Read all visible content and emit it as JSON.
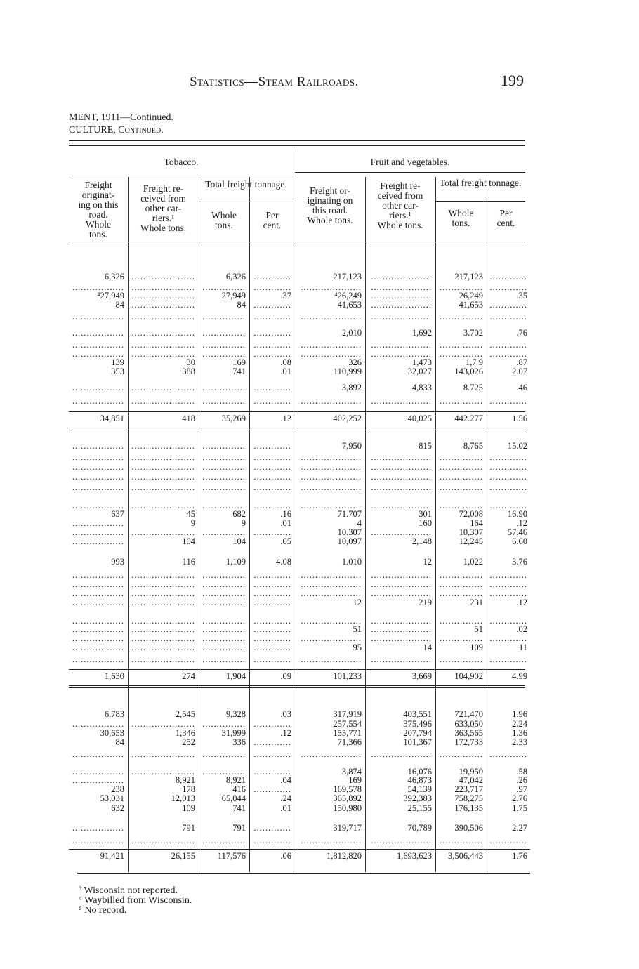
{
  "page": {
    "running_head": "Statistics—Steam Railroads.",
    "page_number": "199",
    "continued_1": "MENT, 1911—Continued.",
    "continued_2": "CULTURE, Continued."
  },
  "table": {
    "groups": [
      "Tobacco.",
      "Fruit and vegetables."
    ],
    "subgroup": "Total freight tonnage.",
    "columns": [
      "Freight originating on this road. Whole tons.",
      "Freight received from other carriers.¹ Whole tons.",
      "Whole tons.",
      "Per cent.",
      "Freight originating on this road. Whole tons.",
      "Freight received from other carriers.¹ Whole tons.",
      "Whole tons.",
      "Per cent."
    ],
    "column_lines": [
      [
        "Freight",
        "originat-",
        "ing on this",
        "road.",
        "Whole",
        "tons."
      ],
      [
        "Freight re-",
        "ceived from",
        "other car-",
        "riers.¹",
        "Whole tons."
      ],
      [
        "Whole",
        "tons."
      ],
      [
        "Per",
        "cent."
      ],
      [
        "Freight or-",
        "iginating on",
        "this road.",
        "Whole tons."
      ],
      [
        "Freight re-",
        "ceived from",
        "other car-",
        "riers.¹",
        "Whole tons."
      ],
      [
        "Whole",
        "tons."
      ],
      [
        "Per",
        "cent."
      ]
    ],
    "rows": [
      [
        "6,326",
        "........",
        "6,326",
        "........",
        "217,123",
        "........",
        "217,123",
        "........"
      ],
      [
        "........",
        "........",
        "........",
        "........",
        "........",
        "........",
        "........",
        "........"
      ],
      [
        "⁴27,949",
        "........",
        "27,949",
        ".37",
        "⁴26,249",
        "........",
        "26,249",
        ".35"
      ],
      [
        "84",
        "........",
        "84",
        "........",
        "41,653",
        "........",
        "41,653",
        "........"
      ],
      [
        "........",
        "........",
        "........",
        "........",
        "........",
        "........",
        "........",
        "........"
      ],
      [
        "........",
        "........",
        "........",
        "........",
        "2,010",
        "1,692",
        "3.702",
        ".76"
      ],
      [
        "........",
        "........",
        "........",
        "........",
        "........",
        "........",
        "........",
        "........"
      ],
      [
        "........",
        "........",
        "........",
        "........",
        "........",
        "........",
        "........",
        "........"
      ],
      [
        "139",
        "30",
        "169",
        ".08",
        "326",
        "1,473",
        "1,7 9",
        ".87"
      ],
      [
        "353",
        "388",
        "741",
        ".01",
        "110,999",
        "32,027",
        "143,026",
        "2.07"
      ],
      [
        "........",
        "........",
        "........",
        "........",
        "3,892",
        "4,833",
        "8.725",
        ".46"
      ],
      [
        "........",
        "........",
        "........",
        "........",
        "........",
        "........",
        "........",
        "........"
      ],
      [
        "34,851",
        "418",
        "35,269",
        ".12",
        "402,252",
        "40,025",
        "442.277",
        "1.56"
      ],
      [
        "........",
        "........",
        "........",
        "........",
        "7,950",
        "815",
        "8,765",
        "15.02"
      ],
      [
        "........",
        "........",
        "........",
        "........",
        "........",
        "........",
        "........",
        "........"
      ],
      [
        "........",
        "........",
        "........",
        "........",
        "........",
        "........",
        "........",
        "........"
      ],
      [
        "........",
        "........",
        "........",
        "........",
        "........",
        "........",
        "........",
        "........"
      ],
      [
        "........",
        "........",
        "........",
        "........",
        "........",
        "........",
        "........",
        "........"
      ],
      [
        "........",
        "........",
        "........",
        "........",
        "........",
        "........",
        "........",
        "........"
      ],
      [
        "637",
        "45",
        "682",
        ".16",
        "71.707",
        "301",
        "72,008",
        "16.90"
      ],
      [
        "........",
        "9",
        "9",
        ".01",
        "4",
        "160",
        "164",
        ".12"
      ],
      [
        "........",
        "........",
        "........",
        "........",
        "10.307",
        "........",
        "10,307",
        "57.46"
      ],
      [
        "........",
        "104",
        "104",
        ".05",
        "10,097",
        "2,148",
        "12,245",
        "6.60"
      ],
      [
        "993",
        "116",
        "1,109",
        "4.08",
        "1.010",
        "12",
        "1,022",
        "3.76"
      ],
      [
        "........",
        "........",
        "........",
        "........",
        "........",
        "........",
        "........",
        "........"
      ],
      [
        "........",
        "........",
        "........",
        "........",
        "........",
        "........",
        "........",
        "........"
      ],
      [
        "........",
        "........",
        "........",
        "........",
        "........",
        "........",
        "........",
        "........"
      ],
      [
        "........",
        "........",
        "........",
        "........",
        "12",
        "219",
        "231",
        ".12"
      ],
      [
        "........",
        "........",
        "........",
        "........",
        "........",
        "........",
        "........",
        "........"
      ],
      [
        "........",
        "........",
        "........",
        "........",
        "51",
        "........",
        "51",
        ".02"
      ],
      [
        "........",
        "........",
        "........",
        "........",
        "........",
        "........",
        "........",
        "........"
      ],
      [
        "........",
        "........",
        "........",
        "........",
        "95",
        "14",
        "109",
        ".11"
      ],
      [
        "........",
        "........",
        "........",
        "........",
        "........",
        "........",
        "........",
        "........"
      ],
      [
        "1,630",
        "274",
        "1,904",
        ".09",
        "101,233",
        "3,669",
        "104,902",
        "4.99"
      ],
      [
        "6,783",
        "2,545",
        "9,328",
        ".03",
        "317,919",
        "403,551",
        "721,470",
        "1.96"
      ],
      [
        "........",
        "........",
        "........",
        "........",
        "257,554",
        "375,496",
        "633,050",
        "2.24"
      ],
      [
        "30,653",
        "1,346",
        "31,999",
        ".12",
        "155,771",
        "207,794",
        "363,565",
        "1.36"
      ],
      [
        "84",
        "252",
        "336",
        "........",
        "71,366",
        "101,367",
        "172,733",
        "2.33"
      ],
      [
        "........",
        "........",
        "........",
        "........",
        "........",
        "........",
        "........",
        "........"
      ],
      [
        "........",
        "........",
        "........",
        "........",
        "3,874",
        "16,076",
        "19,950",
        ".58"
      ],
      [
        "........",
        "8,921",
        "8,921",
        ".04",
        "169",
        "46,873",
        "47,042",
        ".26"
      ],
      [
        "238",
        "178",
        "416",
        "........",
        "169,578",
        "54,139",
        "223,717",
        ".97"
      ],
      [
        "53,031",
        "12,013",
        "65,044",
        ".24",
        "365,892",
        "392,383",
        "758,275",
        "2.76"
      ],
      [
        "632",
        "109",
        "741",
        ".01",
        "150,980",
        "25,155",
        "176,135",
        "1.75"
      ],
      [
        "........",
        "791",
        "791",
        "........",
        "319,717",
        "70,789",
        "390,506",
        "2.27"
      ],
      [
        "........",
        "........",
        "........",
        "........",
        "........",
        "........",
        "........",
        "........"
      ],
      [
        "91,421",
        "26,155",
        "117,576",
        ".06",
        "1,812,820",
        "1,693,623",
        "3,506,443",
        "1.76"
      ]
    ]
  },
  "footnotes": [
    "³ Wisconsin not reported.",
    "⁴ Waybilled from Wisconsin.",
    "⁵ No record."
  ]
}
